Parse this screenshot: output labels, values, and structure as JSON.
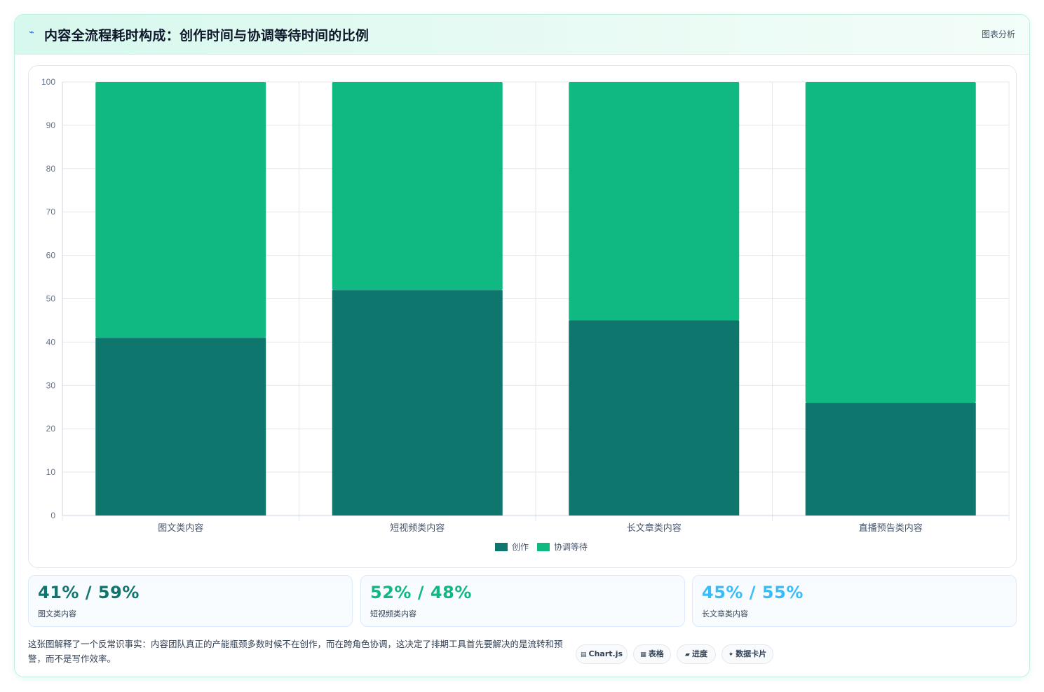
{
  "header": {
    "icon": "lightning-icon",
    "title": "内容全流程耗时构成：创作时间与协调等待时间的比例",
    "tag": "图表分析"
  },
  "colors": {
    "creation": "#0f766e",
    "waiting": "#10b981",
    "stat1": "#0f766e",
    "stat2": "#10b981",
    "stat3": "#38bdf8"
  },
  "chart_data": {
    "type": "bar",
    "stacked": true,
    "categories": [
      "图文类内容",
      "短视频类内容",
      "长文章类内容",
      "直播预告类内容"
    ],
    "series": [
      {
        "name": "创作",
        "values": [
          41,
          52,
          45,
          26
        ]
      },
      {
        "name": "协调等待",
        "values": [
          59,
          48,
          55,
          74
        ]
      }
    ],
    "ylim": [
      0,
      100
    ],
    "yticks": [
      0,
      10,
      20,
      30,
      40,
      50,
      60,
      70,
      80,
      90,
      100
    ],
    "grid": true,
    "legend": "bottom"
  },
  "stats": [
    {
      "value": "41% / 59%",
      "label": "图文类内容"
    },
    {
      "value": "52% / 48%",
      "label": "短视频类内容"
    },
    {
      "value": "45% / 55%",
      "label": "长文章类内容"
    }
  ],
  "note": "这张图解释了一个反常识事实：内容团队真正的产能瓶颈多数时候不在创作，而在跨角色协调，这决定了排期工具首先要解决的是流转和预警，而不是写作效率。",
  "pills": [
    {
      "icon": "chart-icon",
      "label": "Chart.js"
    },
    {
      "icon": "table-icon",
      "label": "表格"
    },
    {
      "icon": "progress-icon",
      "label": "进度"
    },
    {
      "icon": "sparkle-icon",
      "label": "数据卡片"
    }
  ]
}
